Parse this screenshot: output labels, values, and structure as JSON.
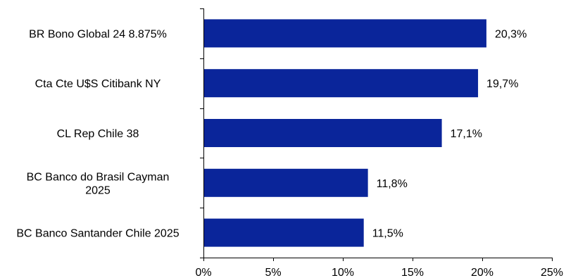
{
  "chart_data": {
    "type": "bar",
    "orientation": "horizontal",
    "title": "",
    "xlabel": "",
    "ylabel": "",
    "categories": [
      [
        "BR Bono Global 24 8.875%"
      ],
      [
        "Cta Cte U$S Citibank NY"
      ],
      [
        "CL Rep Chile 38"
      ],
      [
        "BC Banco do Brasil Cayman",
        "2025"
      ],
      [
        "BC Banco Santander Chile 2025"
      ]
    ],
    "values": [
      20.3,
      19.7,
      17.1,
      11.8,
      11.5
    ],
    "value_labels": [
      "20,3%",
      "19,7%",
      "17,1%",
      "11,8%",
      "11,5%"
    ],
    "xlim": [
      0,
      25
    ],
    "x_ticks": [
      0,
      5,
      10,
      15,
      20,
      25
    ],
    "x_tick_labels": [
      "0%",
      "5%",
      "10%",
      "15%",
      "20%",
      "25%"
    ],
    "bar_color": "#0a259a",
    "grid": false,
    "legend": "none"
  }
}
